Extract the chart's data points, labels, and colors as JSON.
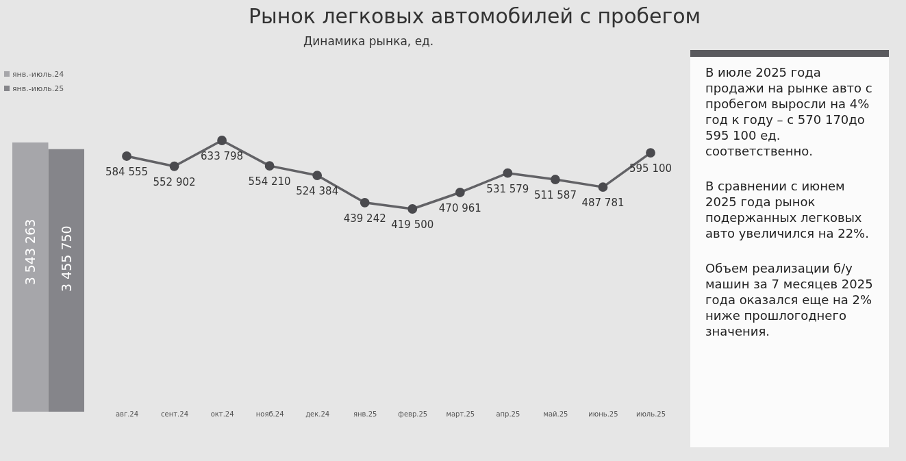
{
  "chart_data": [
    {
      "type": "bar",
      "categories": [
        null
      ],
      "series": [
        {
          "name": "янв.-июль.24",
          "color": "#a6a6aa",
          "values": [
            3543263
          ]
        },
        {
          "name": "янв.-июль.25",
          "color": "#85858a",
          "values": [
            3455750
          ]
        }
      ],
      "data_labels": true,
      "legend": "top"
    },
    {
      "type": "line",
      "title": "Рынок легковых автомобилей с пробегом",
      "subtitle": "Динамика рынка, ед.",
      "categories": [
        "авг.24",
        "сент.24",
        "окт.24",
        "нояб.24",
        "дек.24",
        "янв.25",
        "февр.25",
        "март.25",
        "апр.25",
        "май.25",
        "июнь.25",
        "июль.25"
      ],
      "series": [
        {
          "color": "#626266",
          "values": [
            584555,
            552902,
            633798,
            554210,
            524384,
            439242,
            419500,
            470961,
            531579,
            511587,
            487781,
            595100
          ]
        }
      ],
      "data_labels": true,
      "marker": "circle"
    },
    {
      "type": "other",
      "annotations": [
        "В июле 2025 года продажи на рынке авто с пробегом выросли на 4% год к году – с 570 170до 595 100 ед. соответственно.",
        "В сравнении с июнем 2025 года рынок подержанных легковых авто увеличился на 22%.",
        "Объем реализации б/у машин за 7 месяцев 2025 года оказался еще на 2% ниже прошлогоднего значения."
      ]
    }
  ]
}
